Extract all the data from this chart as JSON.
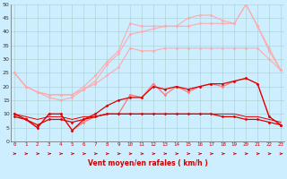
{
  "xlabel": "Vent moyen/en rafales ( km/h )",
  "background_color": "#cceeff",
  "grid_color": "#aacccc",
  "xmin": 0,
  "xmax": 23,
  "ymin": 0,
  "ymax": 50,
  "series": [
    {
      "color": "#ffaaaa",
      "lw": 0.8,
      "marker": "D",
      "ms": 1.5,
      "x": [
        0,
        1,
        2,
        3,
        4,
        5,
        6,
        7,
        8,
        9,
        10,
        11,
        12,
        13,
        14,
        15,
        16,
        17,
        18,
        19,
        20,
        21,
        22,
        23
      ],
      "y": [
        25,
        20,
        18,
        17,
        17,
        17,
        19,
        21,
        24,
        27,
        34,
        33,
        33,
        34,
        34,
        34,
        34,
        34,
        34,
        34,
        34,
        34,
        30,
        26
      ]
    },
    {
      "color": "#ffaaaa",
      "lw": 0.8,
      "marker": "D",
      "ms": 1.5,
      "x": [
        0,
        1,
        2,
        3,
        4,
        5,
        6,
        7,
        8,
        9,
        10,
        11,
        12,
        13,
        14,
        15,
        16,
        17,
        18,
        19,
        20,
        21,
        22,
        23
      ],
      "y": [
        25,
        20,
        18,
        17,
        17,
        17,
        20,
        24,
        29,
        33,
        43,
        42,
        42,
        42,
        42,
        45,
        46,
        46,
        44,
        43,
        50,
        42,
        33,
        26
      ]
    },
    {
      "color": "#ffaaaa",
      "lw": 0.8,
      "marker": "D",
      "ms": 1.5,
      "x": [
        0,
        1,
        2,
        3,
        4,
        5,
        6,
        7,
        8,
        9,
        10,
        11,
        12,
        13,
        14,
        15,
        16,
        17,
        18,
        19,
        20,
        21,
        22,
        23
      ],
      "y": [
        25,
        20,
        18,
        16,
        15,
        16,
        19,
        22,
        28,
        32,
        39,
        40,
        41,
        42,
        42,
        42,
        43,
        43,
        43,
        43,
        50,
        42,
        34,
        26
      ]
    },
    {
      "color": "#ff7777",
      "lw": 0.9,
      "marker": "D",
      "ms": 1.5,
      "x": [
        0,
        1,
        2,
        3,
        4,
        5,
        6,
        7,
        8,
        9,
        10,
        11,
        12,
        13,
        14,
        15,
        16,
        17,
        18,
        19,
        20,
        21,
        22,
        23
      ],
      "y": [
        10,
        8,
        5,
        10,
        10,
        4,
        7,
        9,
        10,
        10,
        17,
        16,
        21,
        17,
        20,
        18,
        20,
        21,
        20,
        22,
        23,
        21,
        9,
        6
      ]
    },
    {
      "color": "#dd0000",
      "lw": 0.9,
      "marker": "D",
      "ms": 1.5,
      "x": [
        0,
        1,
        2,
        3,
        4,
        5,
        6,
        7,
        8,
        9,
        10,
        11,
        12,
        13,
        14,
        15,
        16,
        17,
        18,
        19,
        20,
        21,
        22,
        23
      ],
      "y": [
        10,
        8,
        5,
        10,
        10,
        4,
        8,
        10,
        13,
        15,
        16,
        16,
        20,
        19,
        20,
        19,
        20,
        21,
        21,
        22,
        23,
        21,
        9,
        6
      ]
    },
    {
      "color": "#dd0000",
      "lw": 0.9,
      "marker": "D",
      "ms": 1.5,
      "x": [
        0,
        1,
        2,
        3,
        4,
        5,
        6,
        7,
        8,
        9,
        10,
        11,
        12,
        13,
        14,
        15,
        16,
        17,
        18,
        19,
        20,
        21,
        22,
        23
      ],
      "y": [
        9,
        8,
        6,
        8,
        8,
        7,
        8,
        9,
        10,
        10,
        10,
        10,
        10,
        10,
        10,
        10,
        10,
        10,
        9,
        9,
        8,
        8,
        7,
        6
      ]
    },
    {
      "color": "#dd0000",
      "lw": 0.7,
      "marker": null,
      "ms": 0,
      "x": [
        0,
        1,
        2,
        3,
        4,
        5,
        6,
        7,
        8,
        9,
        10,
        11,
        12,
        13,
        14,
        15,
        16,
        17,
        18,
        19,
        20,
        21,
        22,
        23
      ],
      "y": [
        10,
        9,
        8,
        9,
        9,
        8,
        9,
        9,
        10,
        10,
        10,
        10,
        10,
        10,
        10,
        10,
        10,
        10,
        10,
        10,
        9,
        9,
        8,
        7
      ]
    }
  ],
  "yticks": [
    0,
    5,
    10,
    15,
    20,
    25,
    30,
    35,
    40,
    45,
    50
  ],
  "arrow_color": "#cc0000"
}
